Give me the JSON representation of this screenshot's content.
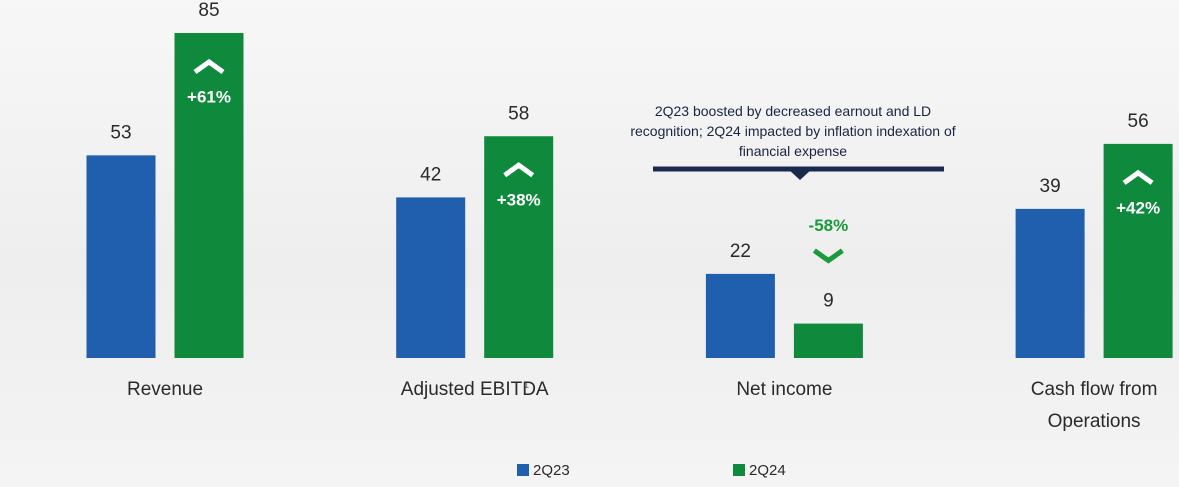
{
  "chart_data": {
    "type": "bar",
    "categories": [
      "Revenue",
      "Adjusted EBITDA",
      "Net income",
      "Cash flow from Operations"
    ],
    "footnote": "1",
    "series": [
      {
        "name": "2Q23",
        "color": "#1f5fad",
        "values": [
          53,
          42,
          22,
          39
        ]
      },
      {
        "name": "2Q24",
        "color": "#0f8a3c",
        "values": [
          85,
          58,
          9,
          56
        ]
      }
    ],
    "changes": {
      "values": [
        61,
        38,
        -58,
        42
      ],
      "value_labels": [
        "+61%",
        "+38%",
        "-58%",
        "+42%"
      ],
      "color": "#1a9a3c"
    },
    "annotation": "2Q23 boosted by decreased earnout and LD recognition; 2Q24 impacted by inflation indexation of financial expense"
  }
}
